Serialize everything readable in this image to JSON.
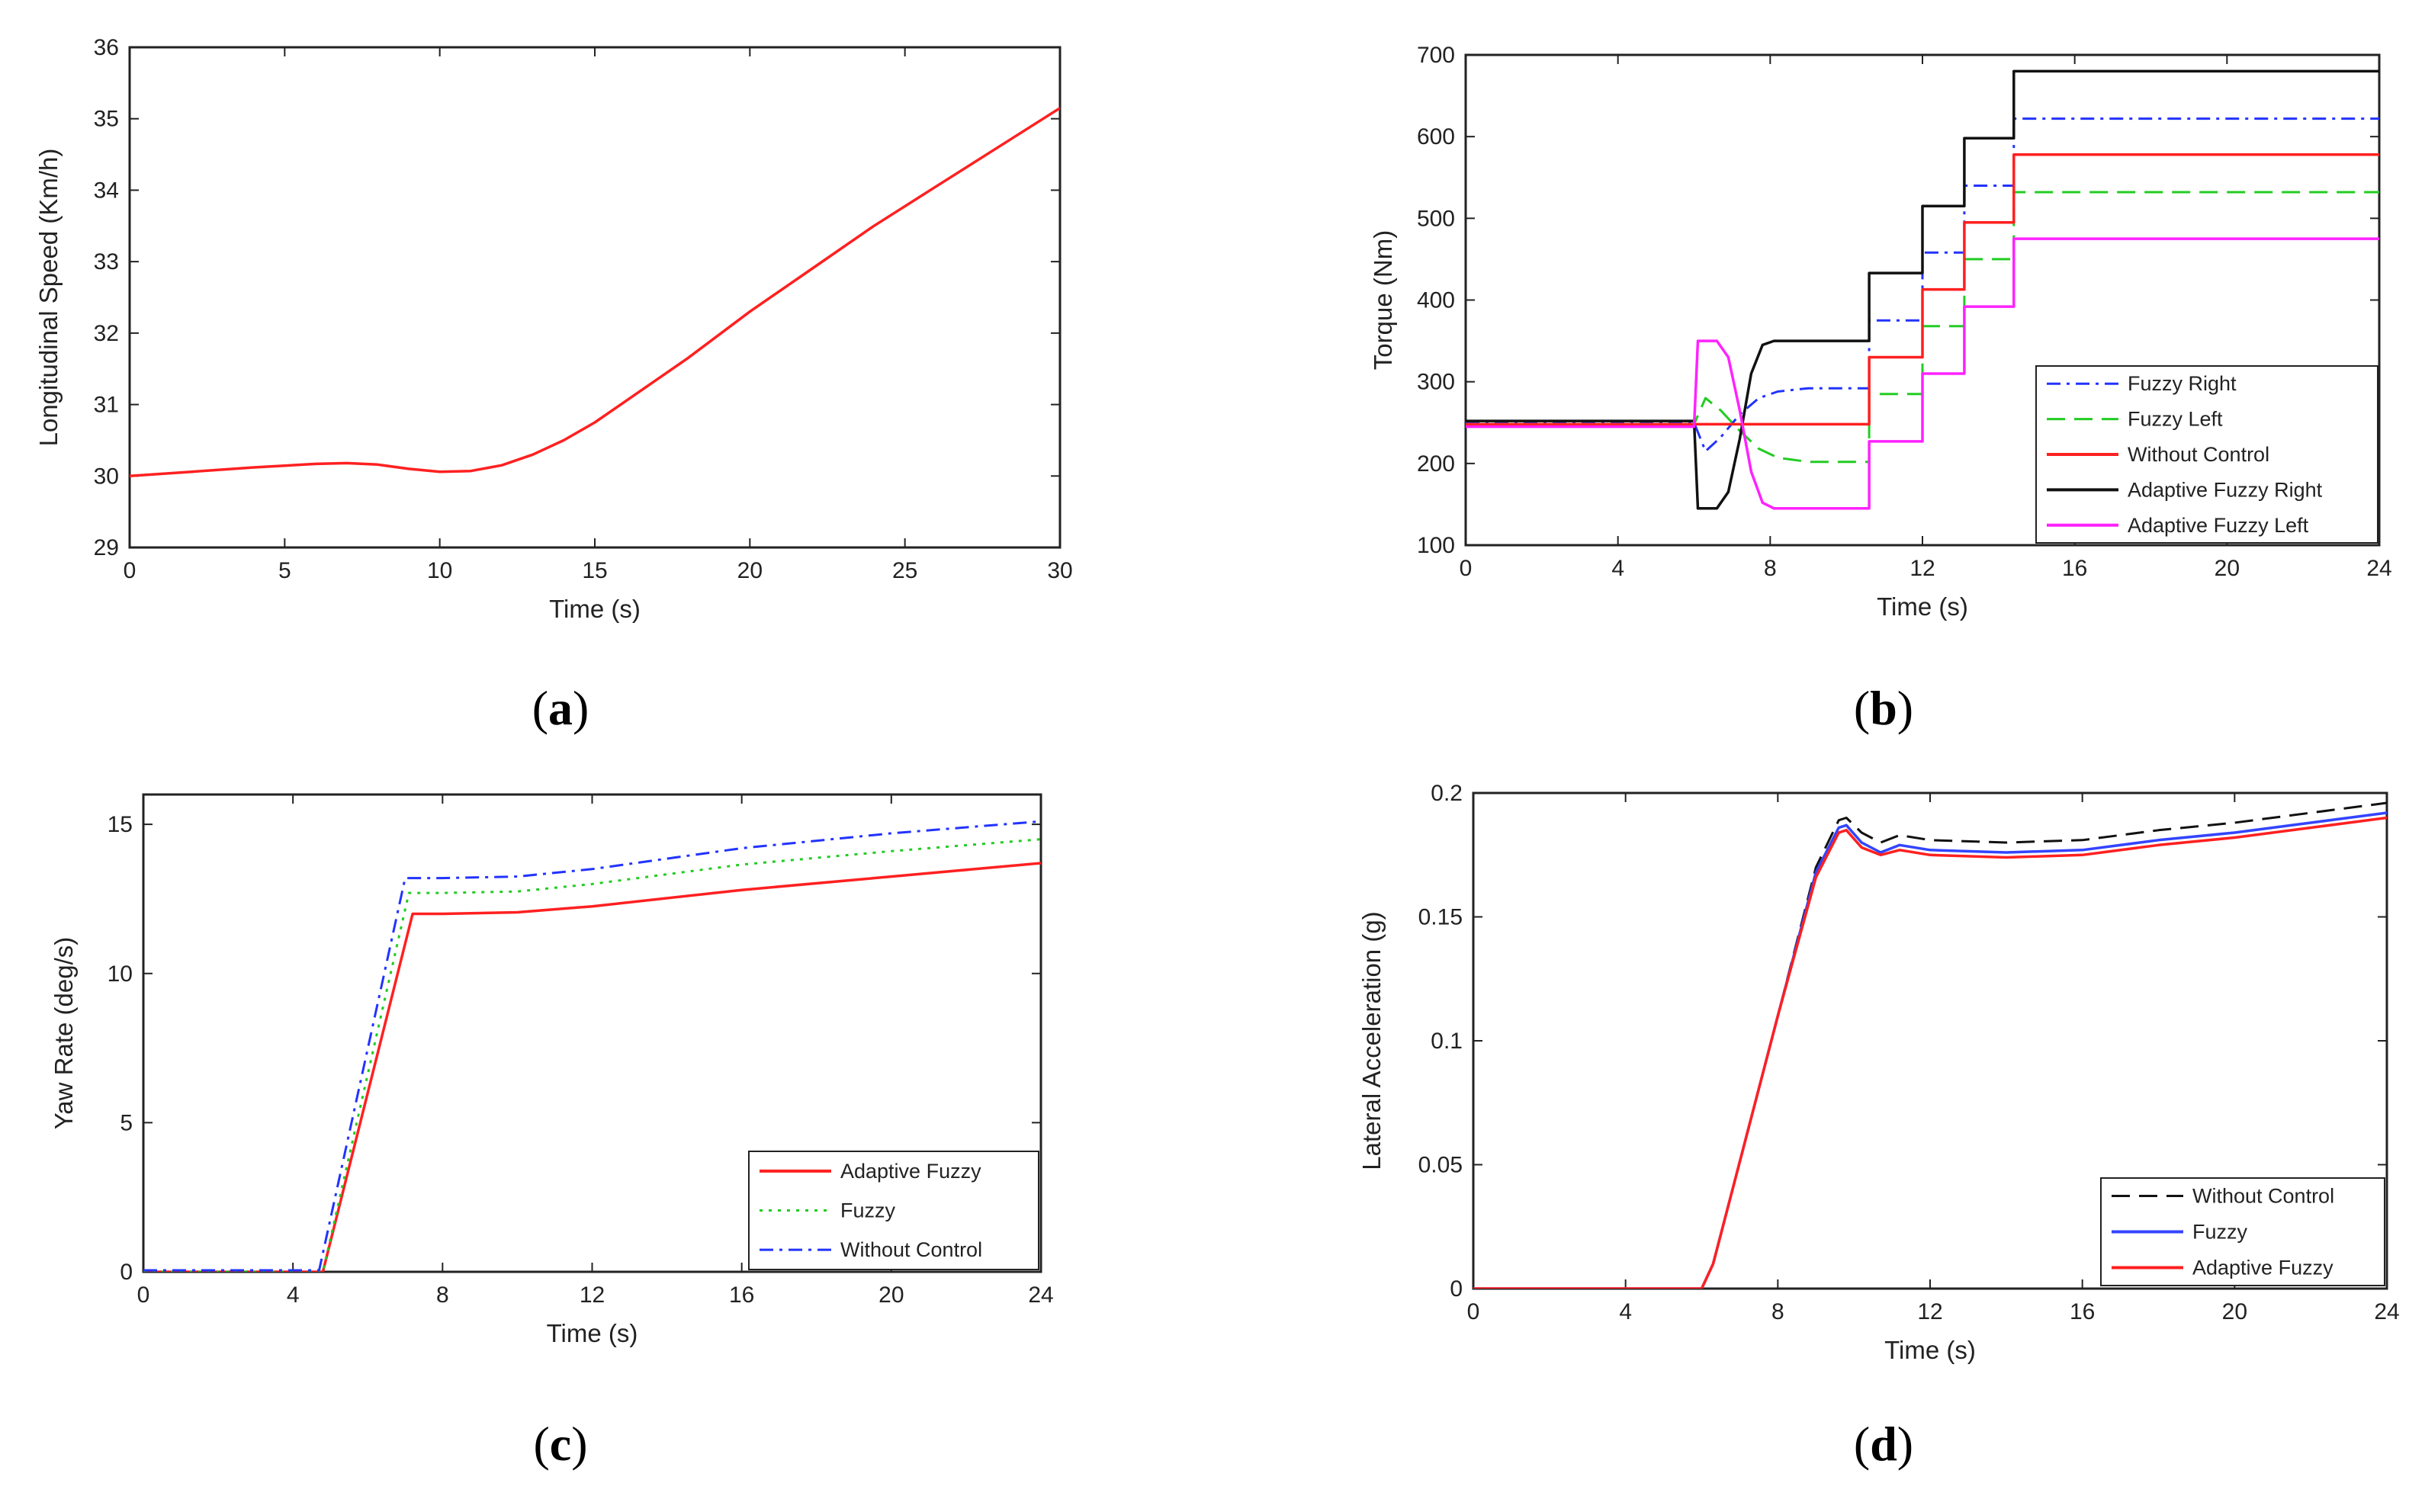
{
  "chart_data": [
    {
      "id": "a",
      "type": "line",
      "panel_label": "a",
      "xlabel": "Time (s)",
      "ylabel": "Longitudinal Speed (Km/h)",
      "xlim": [
        0,
        30
      ],
      "ylim": [
        29,
        36
      ],
      "xticks": [
        0,
        5,
        10,
        15,
        20,
        25,
        30
      ],
      "yticks": [
        29,
        30,
        31,
        32,
        33,
        34,
        35,
        36
      ],
      "legend": "none",
      "series": [
        {
          "name": "Longitudinal Speed",
          "color": "#ff2020",
          "dash": "solid",
          "x": [
            0,
            2,
            4,
            6,
            7,
            8,
            9,
            10,
            11,
            12,
            13,
            14,
            15,
            16,
            18,
            20,
            22,
            24,
            26,
            28,
            30
          ],
          "y": [
            30.0,
            30.06,
            30.12,
            30.17,
            30.18,
            30.16,
            30.1,
            30.06,
            30.07,
            30.15,
            30.3,
            30.5,
            30.75,
            31.05,
            31.65,
            32.3,
            32.9,
            33.5,
            34.05,
            34.6,
            35.15
          ]
        }
      ]
    },
    {
      "id": "b",
      "type": "line",
      "panel_label": "b",
      "xlabel": "Time (s)",
      "ylabel": "Torque (Nm)",
      "xlim": [
        0,
        24
      ],
      "ylim": [
        100,
        700
      ],
      "xticks": [
        0,
        4,
        8,
        12,
        16,
        20,
        24
      ],
      "yticks": [
        100,
        200,
        300,
        400,
        500,
        600,
        700
      ],
      "legend": "bottom-right",
      "series": [
        {
          "name": "Fuzzy Right",
          "color": "#2233ff",
          "dash": "dashdot",
          "x": [
            0,
            6.0,
            6.3,
            6.7,
            7.2,
            7.7,
            8.2,
            9,
            10.6,
            10.6,
            12.0,
            12.0,
            13.1,
            13.1,
            14.4,
            14.4,
            24
          ],
          "y": [
            250,
            250,
            215,
            232,
            260,
            280,
            288,
            292,
            292,
            375,
            375,
            458,
            458,
            540,
            540,
            622,
            622
          ]
        },
        {
          "name": "Fuzzy Left",
          "color": "#22cc22",
          "dash": "dashed",
          "x": [
            0,
            6.0,
            6.3,
            6.7,
            7.2,
            7.7,
            8.2,
            9,
            10.6,
            10.6,
            12.0,
            12.0,
            13.1,
            13.1,
            14.4,
            14.4,
            24
          ],
          "y": [
            248,
            248,
            280,
            265,
            240,
            218,
            207,
            202,
            202,
            285,
            285,
            368,
            368,
            450,
            450,
            532,
            532
          ]
        },
        {
          "name": "Without Control",
          "color": "#ff2020",
          "dash": "solid",
          "x": [
            0,
            10.6,
            10.6,
            12.0,
            12.0,
            13.1,
            13.1,
            14.4,
            14.4,
            24
          ],
          "y": [
            248,
            248,
            330,
            330,
            413,
            413,
            495,
            495,
            578,
            578
          ]
        },
        {
          "name": "Adaptive Fuzzy Right",
          "color": "#111111",
          "dash": "solid",
          "x": [
            0,
            6.0,
            6.1,
            6.6,
            6.9,
            7.2,
            7.5,
            7.8,
            8.1,
            10.6,
            10.6,
            12.0,
            12.0,
            13.1,
            13.1,
            14.4,
            14.4,
            24
          ],
          "y": [
            252,
            252,
            145,
            145,
            165,
            230,
            310,
            345,
            350,
            350,
            433,
            433,
            515,
            515,
            598,
            598,
            680,
            680
          ]
        },
        {
          "name": "Adaptive Fuzzy Left",
          "color": "#ff22ff",
          "dash": "solid",
          "x": [
            0,
            6.0,
            6.1,
            6.6,
            6.9,
            7.2,
            7.5,
            7.8,
            8.1,
            10.6,
            10.6,
            12.0,
            12.0,
            13.1,
            13.1,
            14.4,
            14.4,
            24
          ],
          "y": [
            245,
            245,
            350,
            350,
            330,
            265,
            190,
            152,
            145,
            145,
            227,
            227,
            310,
            310,
            392,
            392,
            475,
            475
          ]
        }
      ]
    },
    {
      "id": "c",
      "type": "line",
      "panel_label": "c",
      "xlabel": "Time (s)",
      "ylabel": "Yaw Rate (deg/s)",
      "xlim": [
        0,
        24
      ],
      "ylim": [
        0,
        16
      ],
      "xticks": [
        0,
        4,
        8,
        12,
        16,
        20,
        24
      ],
      "yticks": [
        0,
        5,
        10,
        15
      ],
      "legend": "bottom-right",
      "series": [
        {
          "name": "Adaptive Fuzzy",
          "color": "#ff2020",
          "dash": "solid",
          "x": [
            0,
            4.8,
            7.2,
            8,
            10,
            12,
            16,
            20,
            24
          ],
          "y": [
            0,
            0,
            12.0,
            12.0,
            12.05,
            12.25,
            12.8,
            13.25,
            13.7
          ]
        },
        {
          "name": "Fuzzy",
          "color": "#22cc22",
          "dash": "dotted",
          "x": [
            0,
            4.8,
            7.1,
            8,
            10,
            12,
            16,
            20,
            24
          ],
          "y": [
            0,
            0,
            12.7,
            12.7,
            12.75,
            13.0,
            13.65,
            14.1,
            14.5
          ]
        },
        {
          "name": "Without Control",
          "color": "#2233ff",
          "dash": "dashdot",
          "x": [
            0,
            4.7,
            7.0,
            8,
            10,
            12,
            16,
            20,
            24
          ],
          "y": [
            0.05,
            0.05,
            13.2,
            13.2,
            13.25,
            13.5,
            14.2,
            14.7,
            15.1
          ]
        }
      ]
    },
    {
      "id": "d",
      "type": "line",
      "panel_label": "d",
      "xlabel": "Time (s)",
      "ylabel": "Lateral Acceleration (g)",
      "xlim": [
        0,
        24
      ],
      "ylim": [
        0,
        0.2
      ],
      "xticks": [
        0,
        4,
        8,
        12,
        16,
        20,
        24
      ],
      "yticks": [
        0,
        0.05,
        0.1,
        0.15,
        0.2
      ],
      "legend": "bottom-right",
      "series": [
        {
          "name": "Without Control",
          "color": "#111111",
          "dash": "dashed",
          "x": [
            0,
            6.0,
            6.3,
            8.0,
            9.0,
            9.6,
            9.8,
            10.2,
            10.7,
            11.2,
            12,
            14,
            16,
            18,
            20,
            22,
            24
          ],
          "y": [
            0,
            0,
            0.01,
            0.11,
            0.17,
            0.189,
            0.19,
            0.184,
            0.18,
            0.183,
            0.181,
            0.18,
            0.181,
            0.185,
            0.188,
            0.192,
            0.196
          ]
        },
        {
          "name": "Fuzzy",
          "color": "#3344ff",
          "dash": "solid",
          "x": [
            0,
            6.0,
            6.3,
            8.0,
            9.0,
            9.6,
            9.8,
            10.2,
            10.7,
            11.2,
            12,
            14,
            16,
            18,
            20,
            22,
            24
          ],
          "y": [
            0,
            0,
            0.01,
            0.11,
            0.168,
            0.186,
            0.187,
            0.18,
            0.176,
            0.179,
            0.177,
            0.176,
            0.177,
            0.181,
            0.184,
            0.188,
            0.192
          ]
        },
        {
          "name": "Adaptive Fuzzy",
          "color": "#ff2020",
          "dash": "solid",
          "x": [
            0,
            6.0,
            6.3,
            8.0,
            9.0,
            9.6,
            9.8,
            10.2,
            10.7,
            11.2,
            12,
            14,
            16,
            18,
            20,
            22,
            24
          ],
          "y": [
            0,
            0,
            0.01,
            0.11,
            0.166,
            0.184,
            0.185,
            0.178,
            0.175,
            0.177,
            0.175,
            0.174,
            0.175,
            0.179,
            0.182,
            0.186,
            0.19
          ]
        }
      ]
    }
  ]
}
